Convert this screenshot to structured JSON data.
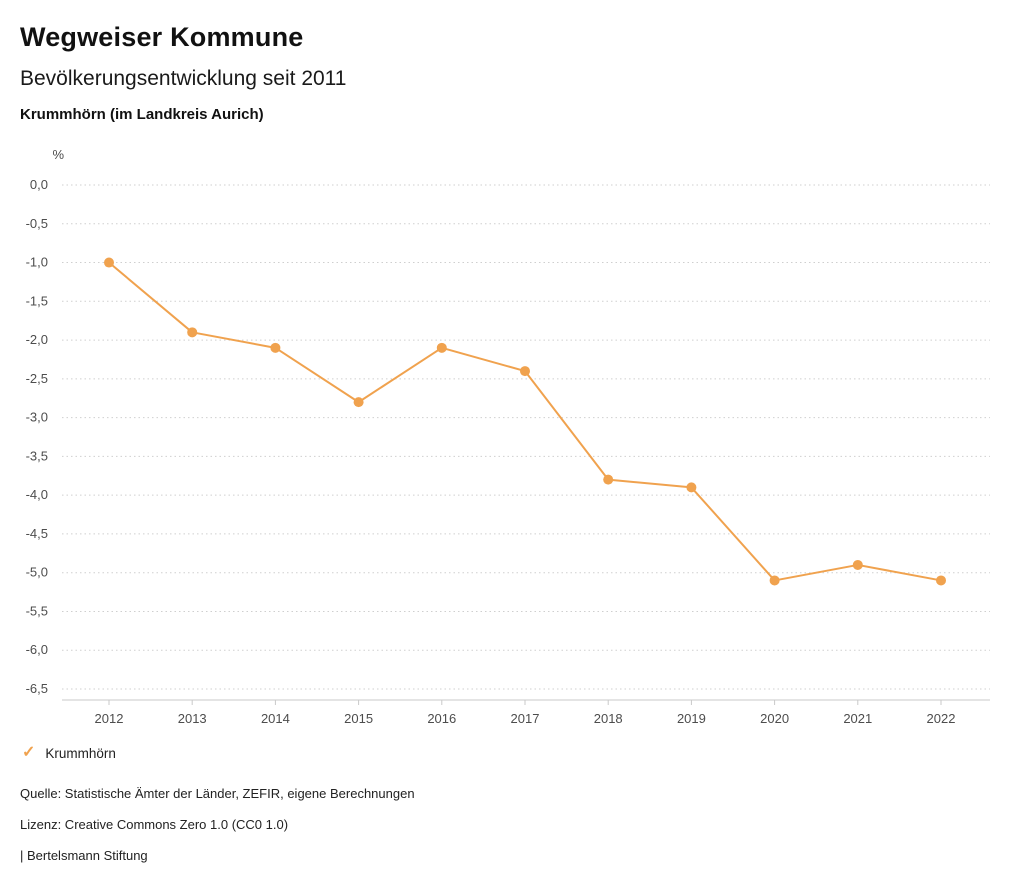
{
  "header": {
    "title": "Wegweiser Kommune",
    "subtitle": "Bevölkerungsentwicklung seit 2011",
    "region": "Krummhörn (im Landkreis Aurich)"
  },
  "chart_data": {
    "type": "line",
    "title": "Bevölkerungsentwicklung seit 2011",
    "subtitle": "Krummhörn (im Landkreis Aurich)",
    "xlabel": "",
    "ylabel": "%",
    "x": [
      "2012",
      "2013",
      "2014",
      "2015",
      "2016",
      "2017",
      "2018",
      "2019",
      "2020",
      "2021",
      "2022"
    ],
    "series": [
      {
        "name": "Krummhörn",
        "color": "#f0a24e",
        "values": [
          -1.0,
          -1.9,
          -2.1,
          -2.8,
          -2.1,
          -2.4,
          -3.8,
          -3.9,
          -5.1,
          -4.9,
          -5.1
        ]
      }
    ],
    "ylim": [
      -6.5,
      0.0
    ],
    "yticks": [
      0.0,
      -0.5,
      -1.0,
      -1.5,
      -2.0,
      -2.5,
      -3.0,
      -3.5,
      -4.0,
      -4.5,
      -5.0,
      -5.5,
      -6.0,
      -6.5
    ],
    "ytick_labels": [
      "0,0",
      "-0,5",
      "-1,0",
      "-1,5",
      "-2,0",
      "-2,5",
      "-3,0",
      "-3,5",
      "-4,0",
      "-4,5",
      "-5,0",
      "-5,5",
      "-6,0",
      "-6,5"
    ],
    "grid": "horizontal-dotted",
    "legend_position": "bottom-left"
  },
  "legend": {
    "marker_glyph": "✓",
    "items": [
      {
        "label": "Krummhörn",
        "color": "#f0a24e"
      }
    ]
  },
  "footer": {
    "source": "Quelle: Statistische Ämter der Länder, ZEFIR, eigene Berechnungen",
    "license": "Lizenz: Creative Commons Zero 1.0 (CC0 1.0)",
    "attribution": "| Bertelsmann Stiftung"
  }
}
